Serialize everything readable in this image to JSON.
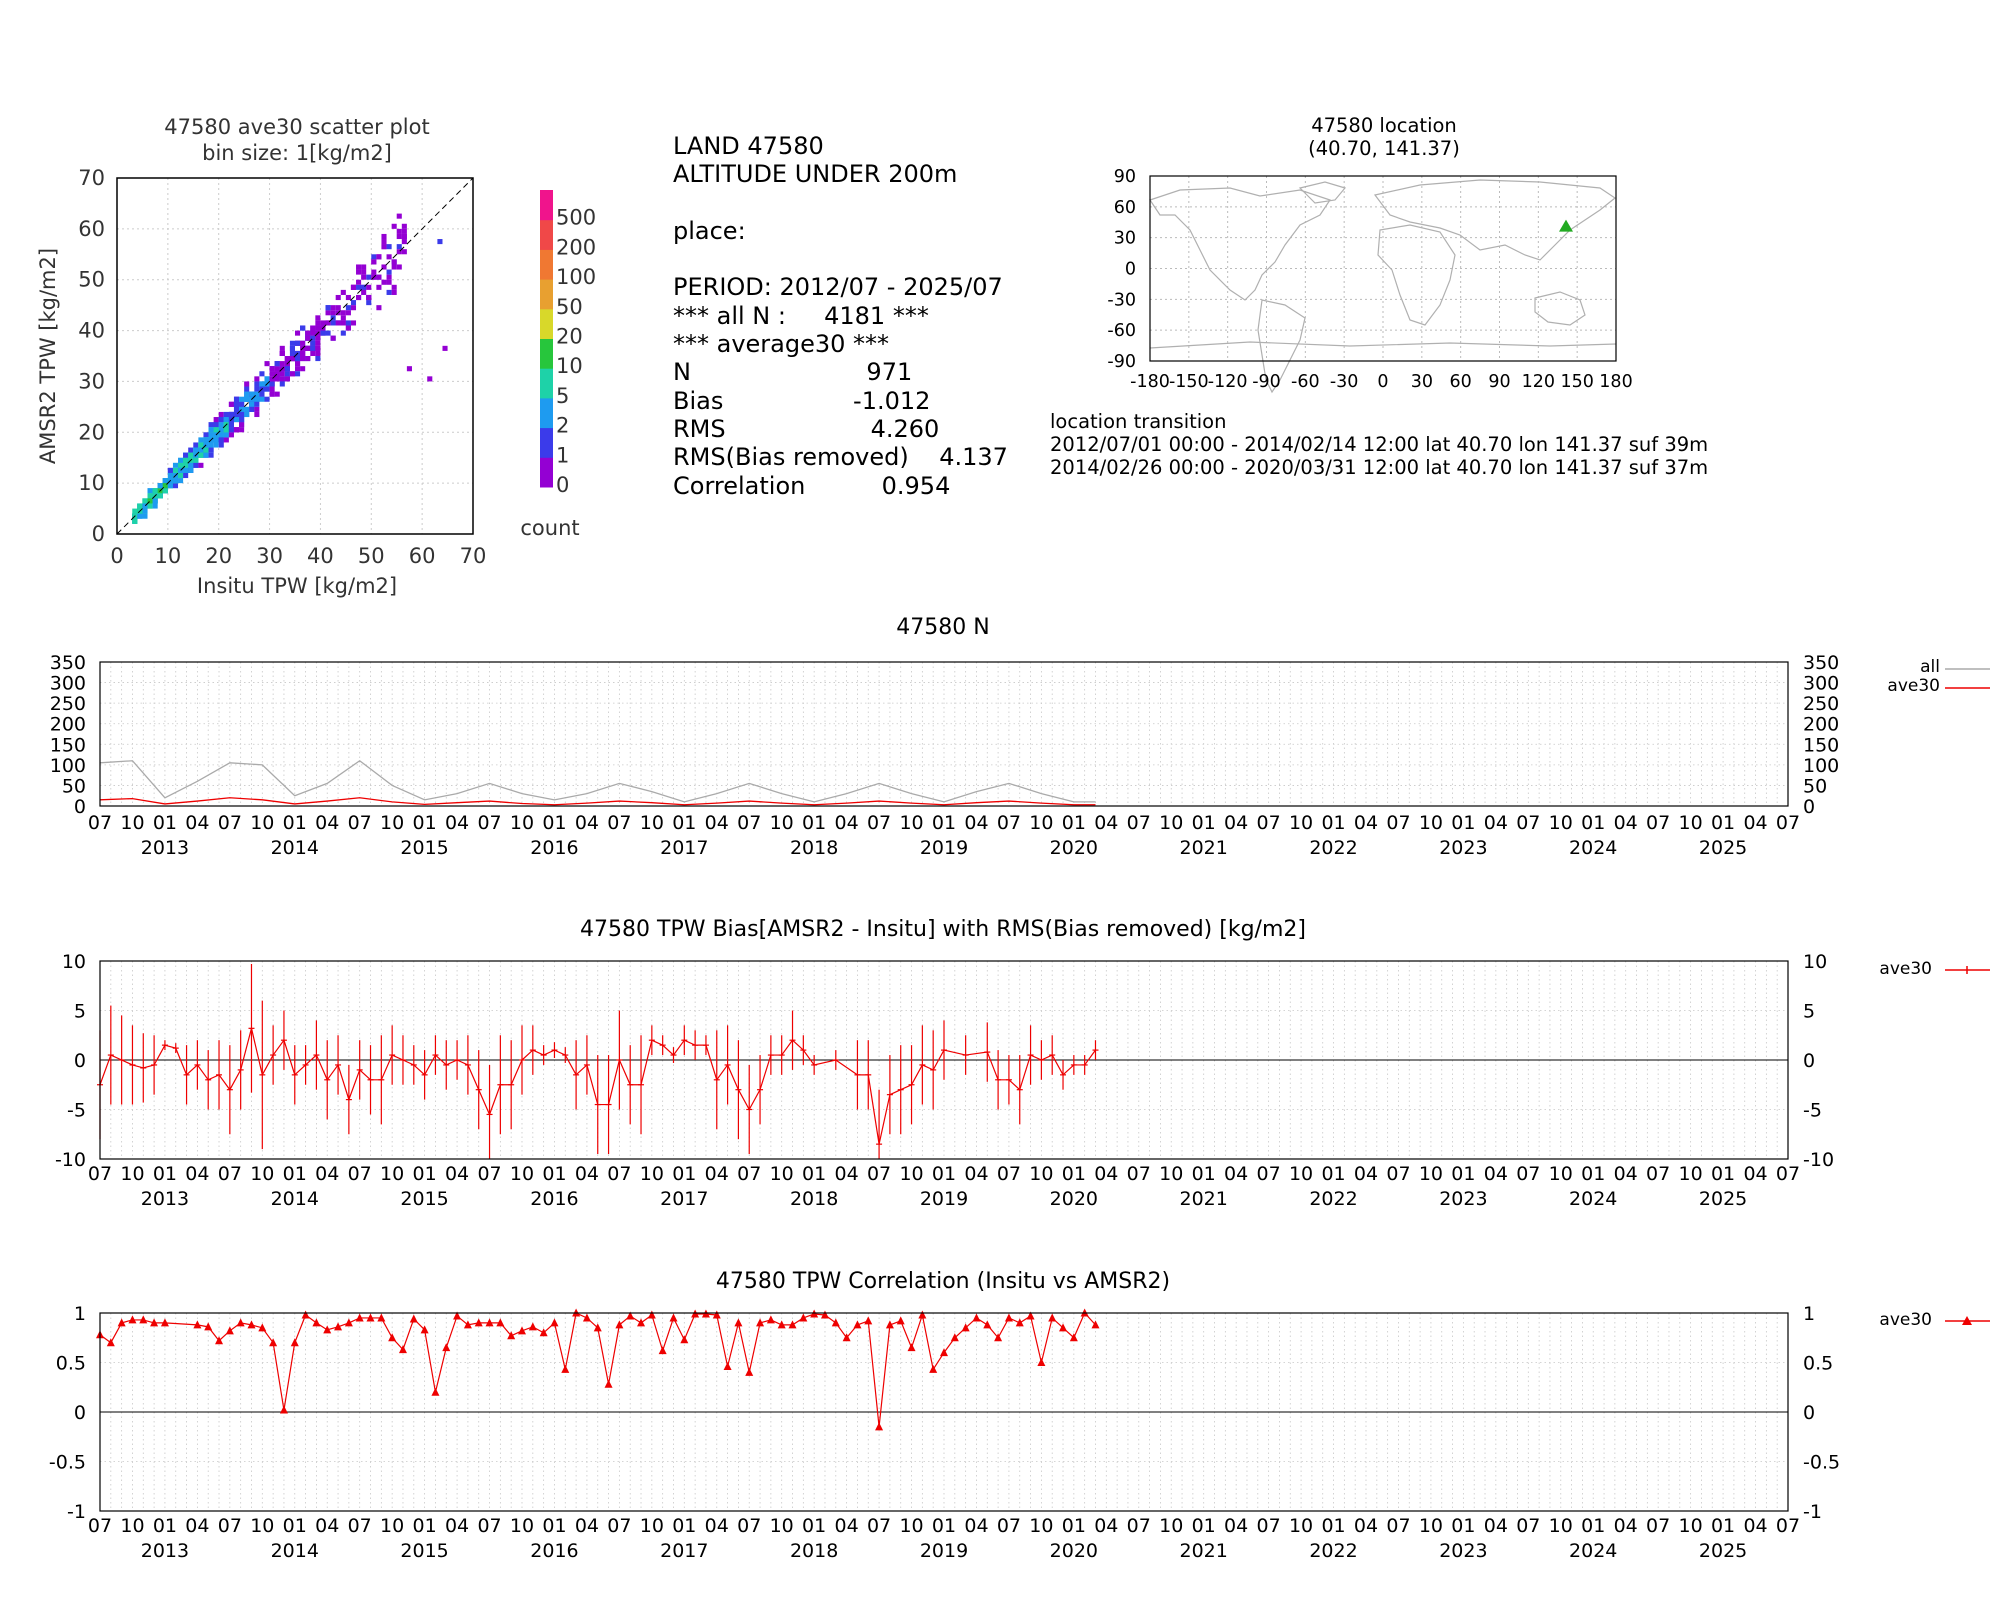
{
  "scatter": {
    "title1": "47580 ave30 scatter plot",
    "title2": "bin size: 1[kg/m2]",
    "xlabel": "Insitu TPW [kg/m2]",
    "ylabel": "AMSR2 TPW [kg/m2]",
    "ticks": [
      "0",
      "10",
      "20",
      "30",
      "40",
      "50",
      "60",
      "70"
    ],
    "colorbar_label": "count",
    "colorbar_levels": [
      "0",
      "1",
      "2",
      "5",
      "10",
      "20",
      "50",
      "100",
      "200",
      "500"
    ],
    "colorbar_colors": [
      "#9400d3",
      "#3b3bea",
      "#1e9bf0",
      "#1ed2a8",
      "#27c63c",
      "#d8d82a",
      "#e8a030",
      "#f07832",
      "#f04848",
      "#f0148c"
    ]
  },
  "stats": {
    "lines": [
      "LAND 47580",
      "ALTITUDE UNDER 200m",
      "",
      "place:",
      "",
      "PERIOD: 2012/07 - 2025/07",
      "*** all N :     4181 ***",
      "*** average30 ***",
      "N                       971",
      "Bias                 -1.012",
      "RMS                   4.260",
      "RMS(Bias removed)    4.137",
      "Correlation          0.954"
    ]
  },
  "map": {
    "title1": "47580 location",
    "title2": "(40.70, 141.37)",
    "yticks": [
      "90",
      "60",
      "30",
      "0",
      "-30",
      "-60",
      "-90"
    ],
    "xticks": [
      "-180",
      "-150",
      "-120",
      "-90",
      "-60",
      "-30",
      "0",
      "30",
      "60",
      "90",
      "120",
      "150",
      "180"
    ],
    "marker_lat": 40.7,
    "marker_lon": 141.37,
    "marker_color": "#22aa22"
  },
  "transition": {
    "title": "location transition",
    "lines": [
      "2012/07/01 00:00 - 2014/02/14 12:00 lat 40.70 lon 141.37 suf 39m",
      "2014/02/26 00:00 - 2020/03/31 12:00 lat 40.70 lon 141.37 suf 37m"
    ]
  },
  "time_axis": {
    "month_labels": [
      "07",
      "10",
      "01",
      "04",
      "07",
      "10",
      "01",
      "04",
      "07",
      "10",
      "01",
      "04",
      "07",
      "10",
      "01",
      "04",
      "07",
      "10",
      "01",
      "04",
      "07",
      "10",
      "01",
      "04",
      "07",
      "10",
      "01",
      "04",
      "07",
      "10",
      "01",
      "04",
      "07",
      "10",
      "01",
      "04",
      "07",
      "10",
      "01",
      "04",
      "07",
      "10",
      "01",
      "04",
      "07",
      "10",
      "01",
      "04",
      "07",
      "10",
      "01",
      "04",
      "07"
    ],
    "year_labels": [
      "2013",
      "2014",
      "2015",
      "2016",
      "2017",
      "2018",
      "2019",
      "2020",
      "2021",
      "2022",
      "2023",
      "2024",
      "2025"
    ]
  },
  "panel_n": {
    "title": "47580 N",
    "yticks": [
      "350",
      "300",
      "250",
      "200",
      "150",
      "100",
      "50",
      "0"
    ],
    "legend_all": "all",
    "legend_ave30": "ave30",
    "color_all": "#aaaaaa",
    "color_ave30": "#ee0000"
  },
  "panel_bias": {
    "title": "47580 TPW Bias[AMSR2 - Insitu] with RMS(Bias removed) [kg/m2]",
    "yticks": [
      "10",
      "5",
      "0",
      "-5",
      "-10"
    ],
    "legend": "ave30",
    "color": "#ee0000"
  },
  "panel_corr": {
    "title": "47580 TPW Correlation (Insitu vs AMSR2)",
    "yticks": [
      "1",
      "0.5",
      "0",
      "-0.5",
      "-1"
    ],
    "legend": "ave30",
    "color": "#ee0000"
  },
  "chart_data": [
    {
      "type": "heatmap",
      "title": "47580 ave30 scatter plot",
      "subtitle": "bin size: 1[kg/m2]",
      "xlabel": "Insitu TPW [kg/m2]",
      "ylabel": "AMSR2 TPW [kg/m2]",
      "xlim": [
        0,
        70
      ],
      "ylim": [
        0,
        70
      ],
      "colorbar_label": "count",
      "note": "Binned 1x1 counts concentrated along the 1:1 line from 3 to 55 kg/m2; densest (5-20 counts) between 4 and 25 kg/m2."
    },
    {
      "type": "line",
      "title": "47580 N",
      "ylim": [
        0,
        350
      ],
      "x_range": [
        "2012/07",
        "2025/07"
      ],
      "series": [
        {
          "name": "all",
          "x": [
            "2012/07",
            "2012/10",
            "2013/01",
            "2013/04",
            "2013/07",
            "2013/10",
            "2014/01",
            "2014/04",
            "2014/07",
            "2014/10",
            "2015/01",
            "2015/04",
            "2015/07",
            "2015/10",
            "2016/01",
            "2016/04",
            "2016/07",
            "2016/10",
            "2017/01",
            "2017/04",
            "2017/07",
            "2017/10",
            "2018/01",
            "2018/04",
            "2018/07",
            "2018/10",
            "2019/01",
            "2019/04",
            "2019/07",
            "2019/10",
            "2020/01",
            "2020/03"
          ],
          "values": [
            105,
            110,
            20,
            60,
            105,
            100,
            25,
            55,
            110,
            50,
            15,
            30,
            55,
            30,
            15,
            30,
            55,
            35,
            10,
            30,
            55,
            30,
            10,
            30,
            55,
            30,
            10,
            35,
            55,
            30,
            10,
            10
          ]
        },
        {
          "name": "ave30",
          "x": [
            "2012/07",
            "2012/10",
            "2013/01",
            "2013/04",
            "2013/07",
            "2013/10",
            "2014/01",
            "2014/04",
            "2014/07",
            "2014/10",
            "2015/01",
            "2015/04",
            "2015/07",
            "2015/10",
            "2016/01",
            "2016/04",
            "2016/07",
            "2016/10",
            "2017/01",
            "2017/04",
            "2017/07",
            "2017/10",
            "2018/01",
            "2018/04",
            "2018/07",
            "2018/10",
            "2019/01",
            "2019/04",
            "2019/07",
            "2019/10",
            "2020/01",
            "2020/03"
          ],
          "values": [
            15,
            18,
            5,
            12,
            20,
            15,
            5,
            12,
            20,
            10,
            4,
            8,
            12,
            6,
            3,
            7,
            12,
            8,
            3,
            7,
            12,
            7,
            3,
            7,
            12,
            7,
            3,
            8,
            12,
            7,
            3,
            3
          ]
        }
      ]
    },
    {
      "type": "line",
      "title": "47580 TPW Bias[AMSR2 - Insitu] with RMS(Bias removed) [kg/m2]",
      "ylim": [
        -10,
        10
      ],
      "series": [
        {
          "name": "ave30",
          "x": [
            "2012/07",
            "2012/08",
            "2012/09",
            "2012/10",
            "2012/11",
            "2012/12",
            "2013/01",
            "2013/02",
            "2013/03",
            "2013/04",
            "2013/05",
            "2013/06",
            "2013/07",
            "2013/08",
            "2013/09",
            "2013/10",
            "2013/11",
            "2013/12",
            "2014/01",
            "2014/02",
            "2014/03",
            "2014/04",
            "2014/05",
            "2014/06",
            "2014/07",
            "2014/08",
            "2014/09",
            "2014/10",
            "2014/11",
            "2014/12",
            "2015/01",
            "2015/02",
            "2015/03",
            "2015/04",
            "2015/05",
            "2015/06",
            "2015/07",
            "2015/08",
            "2015/09",
            "2015/10",
            "2015/11",
            "2015/12",
            "2016/01",
            "2016/02",
            "2016/03",
            "2016/04",
            "2016/05",
            "2016/06",
            "2016/07",
            "2016/08",
            "2016/09",
            "2016/10",
            "2016/11",
            "2016/12",
            "2017/01",
            "2017/02",
            "2017/03",
            "2017/04",
            "2017/05",
            "2017/06",
            "2017/07",
            "2017/08",
            "2017/09",
            "2017/10",
            "2017/11",
            "2017/12",
            "2018/01",
            "2018/03",
            "2018/05",
            "2018/06",
            "2018/07",
            "2018/08",
            "2018/09",
            "2018/10",
            "2018/11",
            "2018/12",
            "2019/01",
            "2019/03",
            "2019/05",
            "2019/06",
            "2019/07",
            "2019/08",
            "2019/09",
            "2019/10",
            "2019/11",
            "2019/12",
            "2020/01",
            "2020/02",
            "2020/03"
          ],
          "values": [
            -2.5,
            0.5,
            0.0,
            -0.5,
            -0.8,
            -0.5,
            1.5,
            1.2,
            -1.5,
            -0.5,
            -2.0,
            -1.5,
            -3.0,
            -1.0,
            3.2,
            -1.5,
            0.5,
            2.0,
            -1.5,
            -0.5,
            0.5,
            -2.0,
            -0.5,
            -4.0,
            -1.0,
            -2.0,
            -2.0,
            0.5,
            0.0,
            -0.5,
            -1.5,
            0.5,
            -0.5,
            0.0,
            -0.5,
            -3.0,
            -5.5,
            -2.5,
            -2.5,
            0.0,
            1.0,
            0.5,
            1.0,
            0.5,
            -1.5,
            -0.5,
            -4.5,
            -4.5,
            0.0,
            -2.5,
            -2.5,
            2.0,
            1.5,
            0.5,
            2.0,
            1.5,
            1.5,
            -2.0,
            -0.5,
            -3.0,
            -5.0,
            -3.0,
            0.5,
            0.5,
            2.0,
            1.0,
            -0.5,
            0.0,
            -1.5,
            -1.5,
            -8.5,
            -3.5,
            -3.0,
            -2.5,
            -0.5,
            -1.0,
            1.0,
            0.5,
            0.8,
            -2.0,
            -2.0,
            -3.0,
            0.5,
            0.0,
            0.5,
            -1.5,
            -0.5,
            -0.5,
            1.0
          ],
          "error": [
            5.5,
            5.0,
            4.5,
            4.0,
            3.5,
            3.0,
            0.5,
            0.5,
            3.0,
            2.5,
            3.0,
            3.5,
            4.5,
            4.0,
            6.5,
            7.5,
            3.0,
            3.0,
            3.0,
            2.0,
            3.5,
            4.0,
            3.0,
            3.5,
            3.0,
            3.5,
            4.5,
            3.0,
            2.5,
            2.0,
            2.5,
            2.0,
            2.5,
            2.0,
            3.0,
            4.0,
            5.0,
            5.0,
            4.5,
            3.5,
            2.5,
            1.0,
            0.8,
            0.8,
            3.5,
            3.0,
            5.0,
            5.0,
            5.0,
            4.0,
            5.0,
            1.5,
            1.0,
            0.8,
            1.5,
            1.5,
            1.0,
            5.0,
            4.0,
            5.0,
            4.5,
            3.5,
            2.0,
            2.0,
            3.0,
            1.5,
            1.0,
            1.0,
            3.5,
            3.5,
            5.5,
            4.0,
            4.5,
            4.0,
            4.0,
            4.0,
            3.0,
            2.0,
            3.0,
            3.0,
            2.5,
            3.5,
            3.0,
            2.0,
            2.0,
            1.5,
            1.0,
            1.0,
            1.0
          ]
        }
      ]
    },
    {
      "type": "line",
      "title": "47580 TPW Correlation (Insitu vs AMSR2)",
      "ylim": [
        -1,
        1
      ],
      "series": [
        {
          "name": "ave30",
          "x": [
            "2012/07",
            "2012/08",
            "2012/09",
            "2012/10",
            "2012/11",
            "2012/12",
            "2013/01",
            "2013/04",
            "2013/05",
            "2013/06",
            "2013/07",
            "2013/08",
            "2013/09",
            "2013/10",
            "2013/11",
            "2013/12",
            "2014/01",
            "2014/02",
            "2014/03",
            "2014/04",
            "2014/05",
            "2014/06",
            "2014/07",
            "2014/08",
            "2014/09",
            "2014/10",
            "2014/11",
            "2014/12",
            "2015/01",
            "2015/02",
            "2015/03",
            "2015/04",
            "2015/05",
            "2015/06",
            "2015/07",
            "2015/08",
            "2015/09",
            "2015/10",
            "2015/11",
            "2015/12",
            "2016/01",
            "2016/02",
            "2016/03",
            "2016/04",
            "2016/05",
            "2016/06",
            "2016/07",
            "2016/08",
            "2016/09",
            "2016/10",
            "2016/11",
            "2016/12",
            "2017/01",
            "2017/02",
            "2017/03",
            "2017/04",
            "2017/05",
            "2017/06",
            "2017/07",
            "2017/08",
            "2017/09",
            "2017/10",
            "2017/11",
            "2017/12",
            "2018/01",
            "2018/02",
            "2018/03",
            "2018/04",
            "2018/05",
            "2018/06",
            "2018/07",
            "2018/08",
            "2018/09",
            "2018/10",
            "2018/11",
            "2018/12",
            "2019/01",
            "2019/02",
            "2019/03",
            "2019/04",
            "2019/05",
            "2019/06",
            "2019/07",
            "2019/08",
            "2019/09",
            "2019/10",
            "2019/11",
            "2019/12",
            "2020/01",
            "2020/02",
            "2020/03"
          ],
          "values": [
            0.78,
            0.7,
            0.9,
            0.93,
            0.93,
            0.9,
            0.9,
            0.88,
            0.86,
            0.72,
            0.82,
            0.9,
            0.88,
            0.85,
            0.7,
            0.02,
            0.7,
            0.98,
            0.9,
            0.83,
            0.86,
            0.9,
            0.95,
            0.95,
            0.95,
            0.75,
            0.63,
            0.94,
            0.83,
            0.2,
            0.65,
            0.97,
            0.88,
            0.9,
            0.9,
            0.9,
            0.77,
            0.82,
            0.86,
            0.8,
            0.9,
            0.43,
            1.0,
            0.95,
            0.85,
            0.28,
            0.88,
            0.97,
            0.9,
            0.98,
            0.62,
            0.95,
            0.73,
            0.99,
            0.99,
            0.98,
            0.46,
            0.9,
            0.4,
            0.9,
            0.93,
            0.88,
            0.88,
            0.95,
            0.99,
            0.98,
            0.9,
            0.75,
            0.88,
            0.92,
            -0.15,
            0.88,
            0.92,
            0.65,
            0.98,
            0.43,
            0.6,
            0.75,
            0.85,
            0.95,
            0.88,
            0.75,
            0.95,
            0.9,
            0.97,
            0.5,
            0.95,
            0.85,
            0.75,
            1.0,
            0.88
          ]
        }
      ]
    }
  ]
}
